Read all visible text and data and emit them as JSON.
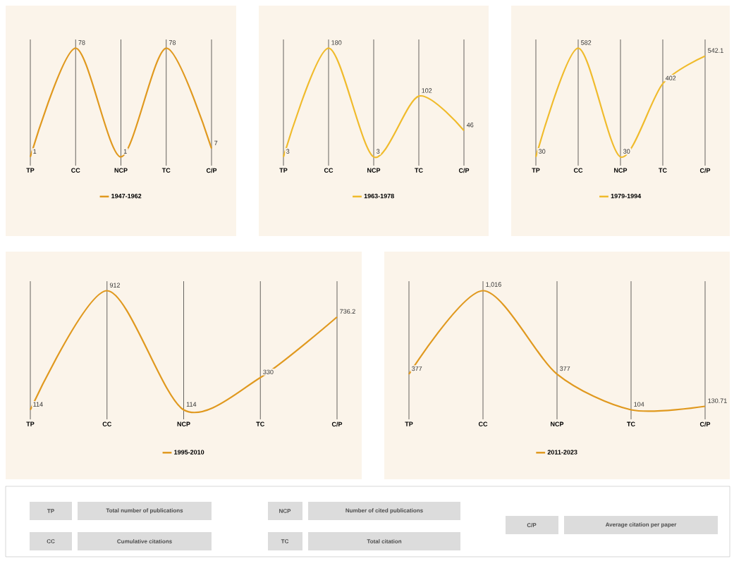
{
  "chart_data": [
    {
      "type": "line",
      "categories": [
        "TP",
        "CC",
        "NCP",
        "TC",
        "C/P"
      ],
      "series": [
        {
          "name": "1947-1962",
          "color": "#e0991f",
          "values": [
            1,
            78,
            1,
            78,
            7
          ],
          "value_labels": [
            "1",
            "78",
            "1",
            "78",
            "7"
          ]
        }
      ],
      "data_labels": true,
      "grid": "x",
      "legend": "bottom",
      "tick_labels": "x"
    },
    {
      "type": "line",
      "categories": [
        "TP",
        "CC",
        "NCP",
        "TC",
        "C/P"
      ],
      "series": [
        {
          "name": "1963-1978",
          "color": "#f0bb2c",
          "values": [
            3,
            180,
            3,
            102,
            46
          ],
          "value_labels": [
            "3",
            "180",
            "3",
            "102",
            "46"
          ]
        }
      ],
      "data_labels": true,
      "grid": "x",
      "legend": "bottom",
      "tick_labels": "x"
    },
    {
      "type": "line",
      "categories": [
        "TP",
        "CC",
        "NCP",
        "TC",
        "C/P"
      ],
      "series": [
        {
          "name": "1979-1994",
          "color": "#f0bb2c",
          "values": [
            30,
            582,
            30,
            402,
            542.1
          ],
          "value_labels": [
            "30",
            "582",
            "30",
            "402",
            "542.1"
          ]
        }
      ],
      "data_labels": true,
      "grid": "x",
      "legend": "bottom",
      "tick_labels": "x"
    },
    {
      "type": "line",
      "categories": [
        "TP",
        "CC",
        "NCP",
        "TC",
        "C/P"
      ],
      "series": [
        {
          "name": "1995-2010",
          "color": "#e0991f",
          "values": [
            114,
            912,
            114,
            330,
            736.2
          ],
          "value_labels": [
            "114",
            "912",
            "114",
            "330",
            "736.2"
          ]
        }
      ],
      "data_labels": true,
      "grid": "x",
      "legend": "bottom",
      "tick_labels": "x"
    },
    {
      "type": "line",
      "categories": [
        "TP",
        "CC",
        "NCP",
        "TC",
        "C/P"
      ],
      "series": [
        {
          "name": "2011-2023",
          "color": "#e0991f",
          "values": [
            377,
            1016,
            377,
            104,
            130.71
          ],
          "value_labels": [
            "377",
            "1,016",
            "377",
            "104",
            "130.71"
          ]
        }
      ],
      "data_labels": true,
      "grid": "x",
      "legend": "bottom",
      "tick_labels": "x"
    },
    {
      "type": "other",
      "annotations": [
        "TP",
        "Total number of publications",
        "CC",
        "Cumulative citations",
        "NCP",
        "Number of cited publications",
        "TC",
        "Total citation",
        "C/P",
        "Average citation per paper"
      ]
    }
  ]
}
